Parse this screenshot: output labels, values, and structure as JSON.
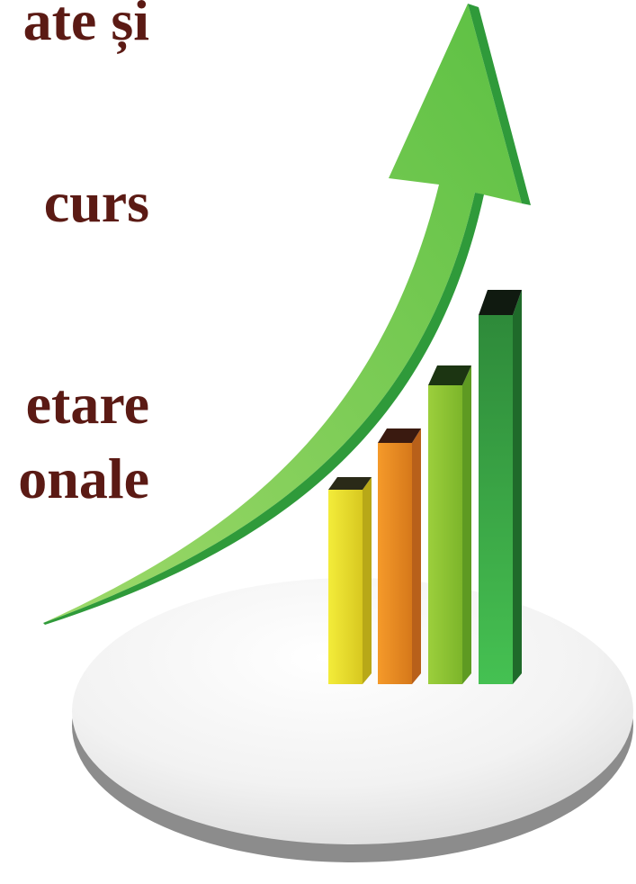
{
  "slide": {
    "lines": [
      "ate și",
      "curs",
      "etare",
      "onale"
    ]
  }
}
